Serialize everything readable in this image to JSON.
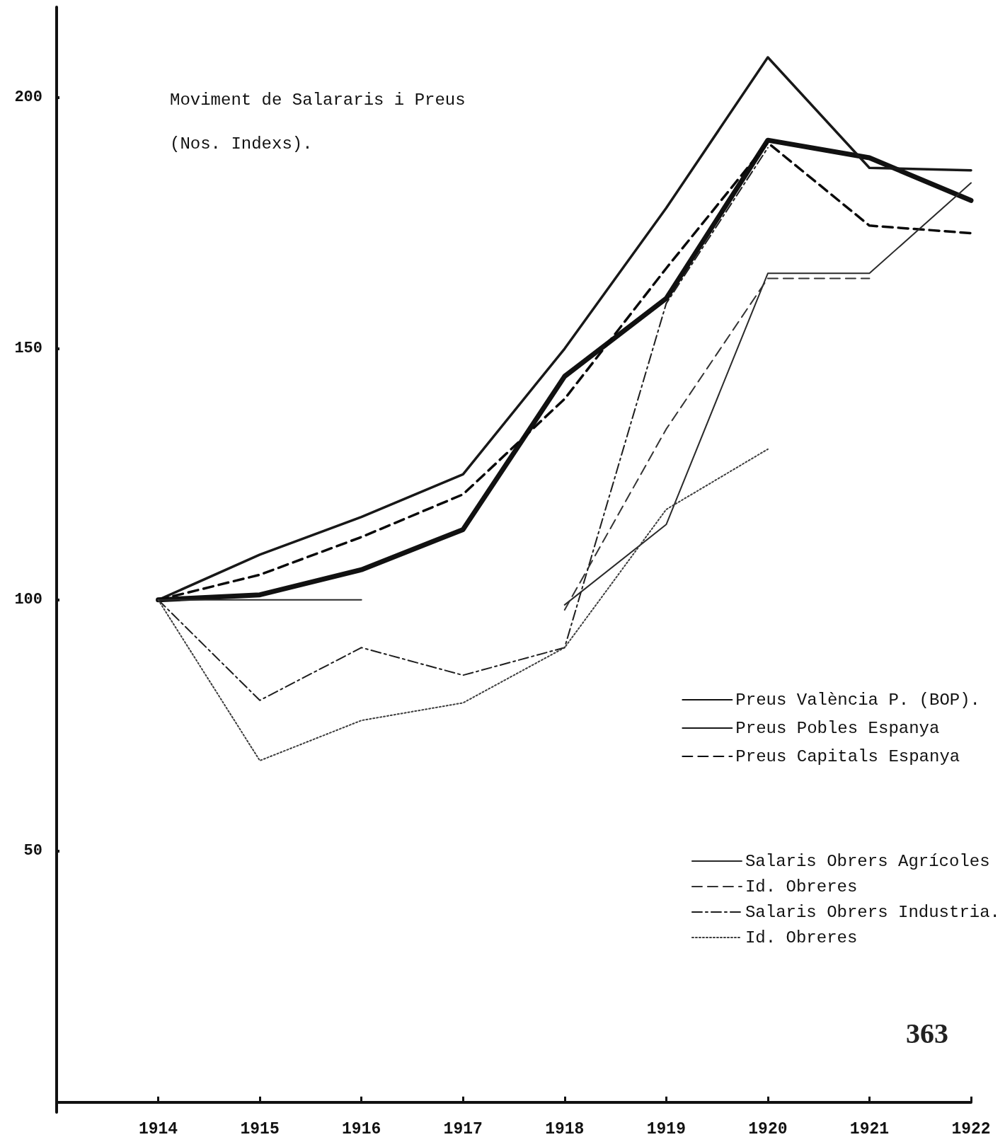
{
  "chart_data": {
    "type": "line",
    "title": "Moviment de Salararis i Preus",
    "subtitle": "(Nos. Indexs).",
    "x": [
      1914,
      1915,
      1916,
      1917,
      1918,
      1919,
      1920,
      1921,
      1922
    ],
    "xlim": [
      1913,
      1922
    ],
    "xticks": [
      1914,
      1915,
      1916,
      1917,
      1918,
      1919,
      1920,
      1921,
      1922
    ],
    "ylim": [
      -2,
      218
    ],
    "yticks": [
      50,
      100,
      150,
      200
    ],
    "grid": false,
    "legend": "bottom right",
    "marker": "none",
    "series": [
      {
        "name": "Preus València P. (BOP).",
        "color": "#111111",
        "line_style": "solid",
        "values": [
          100,
          101,
          106,
          114,
          144.5,
          160,
          191.5,
          188,
          179.5
        ]
      },
      {
        "name": "Preus Pobles Espanya",
        "color": "#181818",
        "line_style": "solid",
        "values": [
          100,
          109,
          116.5,
          125,
          150,
          178,
          208,
          186,
          185.5
        ]
      },
      {
        "name": "Preus Capitals Espanya",
        "color": "#0a0a0a",
        "line_style": "dashed",
        "values": [
          100,
          105,
          112.5,
          121,
          140,
          166,
          191,
          174.5,
          173
        ]
      },
      {
        "name": "Salaris Obrers Agrícoles",
        "color": "#2a2a2a",
        "line_style": "solid",
        "values": [
          100,
          100,
          100,
          null,
          99,
          115,
          165,
          165,
          183
        ]
      },
      {
        "name": "Id. Obreres",
        "color": "#333333",
        "line_style": "dashed",
        "values": [
          null,
          null,
          null,
          null,
          98,
          134,
          164,
          164,
          null
        ]
      },
      {
        "name": "Salaris Obrers Industria.",
        "color": "#1e1e1e",
        "line_style": "dashdot",
        "values": [
          100,
          80,
          90.5,
          85,
          90.5,
          159,
          190,
          null,
          null
        ]
      },
      {
        "name": "Id. Obreres",
        "color": "#3c3c3c",
        "line_style": "dotted",
        "values": [
          100,
          68,
          76,
          79.5,
          90.5,
          118,
          130,
          null,
          null
        ]
      }
    ],
    "annotations": [
      "363"
    ]
  }
}
